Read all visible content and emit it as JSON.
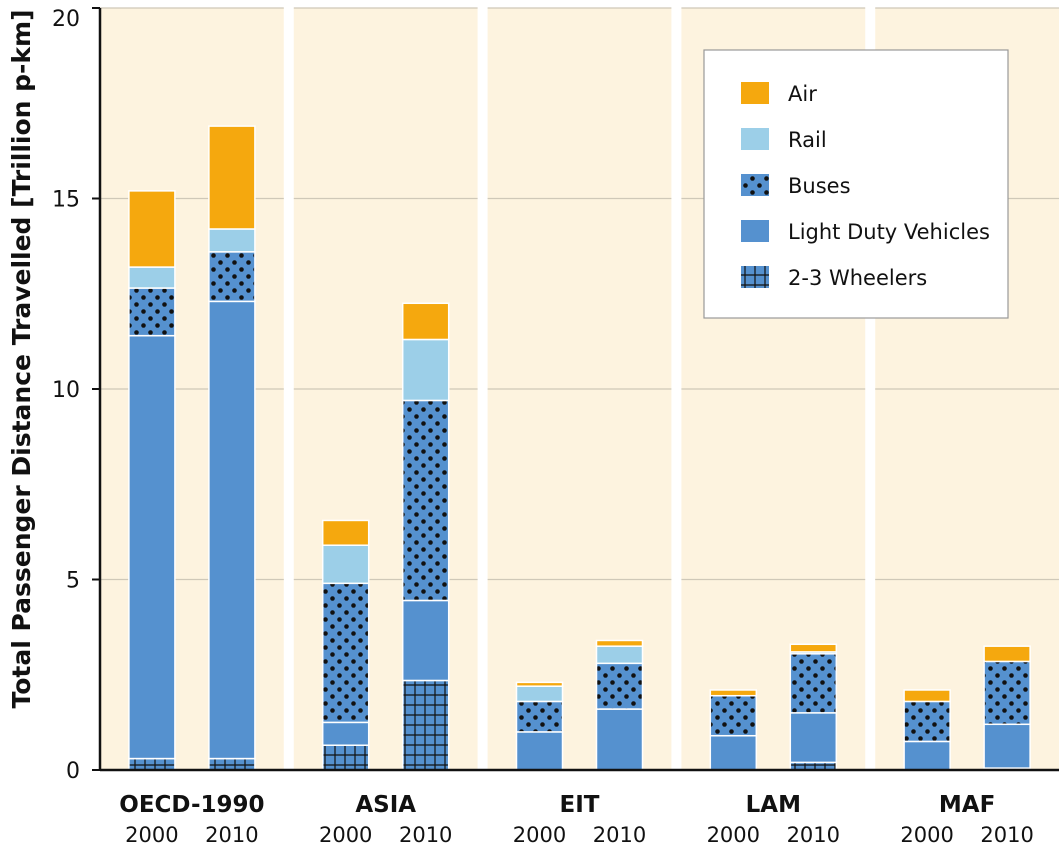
{
  "chart_data": {
    "type": "bar",
    "stacked": true,
    "ylabel": "Total Passenger Distance Travelled [Trillion p-km]",
    "xlabel": "",
    "ylim": [
      0,
      20
    ],
    "yticks": [
      "0",
      "5",
      "10",
      "15",
      "20"
    ],
    "groups": [
      {
        "label": "OECD-1990",
        "years": [
          "2000",
          "2010"
        ]
      },
      {
        "label": "ASIA",
        "years": [
          "2000",
          "2010"
        ]
      },
      {
        "label": "EIT",
        "years": [
          "2000",
          "2010"
        ]
      },
      {
        "label": "LAM",
        "years": [
          "2000",
          "2010"
        ]
      },
      {
        "label": "MAF",
        "years": [
          "2000",
          "2010"
        ]
      }
    ],
    "series": [
      {
        "name": "2-3 Wheelers",
        "color": "#5591cf",
        "pattern": "grid",
        "values": [
          0.3,
          0.3,
          0.65,
          2.35,
          0.0,
          0.0,
          0.0,
          0.2,
          0.0,
          0.05
        ]
      },
      {
        "name": "Light Duty Vehicles",
        "color": "#5591cf",
        "pattern": "none",
        "values": [
          11.1,
          12.0,
          0.6,
          2.1,
          1.0,
          1.6,
          0.9,
          1.3,
          0.75,
          1.15
        ]
      },
      {
        "name": "Buses",
        "color": "#5591cf",
        "pattern": "dots",
        "values": [
          1.25,
          1.3,
          3.65,
          5.25,
          0.8,
          1.2,
          1.05,
          1.55,
          1.05,
          1.65
        ]
      },
      {
        "name": "Rail",
        "color": "#9ccfe8",
        "pattern": "none",
        "values": [
          0.55,
          0.6,
          1.0,
          1.6,
          0.4,
          0.45,
          0.0,
          0.05,
          0.0,
          0.0
        ]
      },
      {
        "name": "Air",
        "color": "#f5a80e",
        "pattern": "none",
        "values": [
          2.0,
          2.7,
          0.65,
          0.95,
          0.1,
          0.15,
          0.15,
          0.2,
          0.3,
          0.4
        ]
      }
    ],
    "legend": {
      "position": "top-right",
      "order": [
        "Air",
        "Rail",
        "Buses",
        "Light Duty Vehicles",
        "2-3 Wheelers"
      ]
    },
    "grid": true,
    "background_color": "#fdf3df",
    "gridline_color": "#cfc8b8"
  }
}
